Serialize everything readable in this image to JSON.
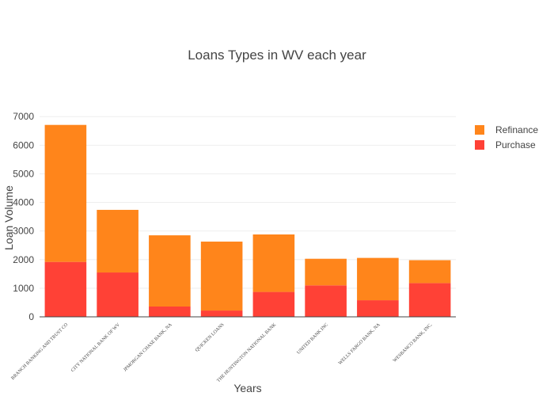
{
  "chart_data": {
    "type": "bar",
    "stacked": true,
    "title": "Loans Types in WV each year",
    "xlabel": "Years",
    "ylabel": "Loan Volume",
    "ylim": [
      0,
      7200
    ],
    "yticks": [
      0,
      1000,
      2000,
      3000,
      4000,
      5000,
      6000,
      7000
    ],
    "grid": true,
    "legend": "top-right",
    "categories": [
      "BRANCH BANKING AND TRUST CO",
      "CITY NATIONAL BANK OF WV",
      "JPMORGAN CHASE BANK, NA",
      "QUICKEN LOANS",
      "THE HUNTINGTON NATIONAL BANK",
      "UNITED BANK INC",
      "WELLS FARGO BANK, NA",
      "WESBANCO BANK, INC."
    ],
    "series": [
      {
        "name": "Purchase",
        "color": "#ff4136",
        "values": [
          1920,
          1550,
          360,
          220,
          870,
          1100,
          580,
          1180
        ]
      },
      {
        "name": "Refinance",
        "color": "#ff851b",
        "values": [
          4790,
          2190,
          2490,
          2410,
          2010,
          930,
          1480,
          800
        ]
      }
    ],
    "legend_order": [
      "Refinance",
      "Purchase"
    ]
  }
}
